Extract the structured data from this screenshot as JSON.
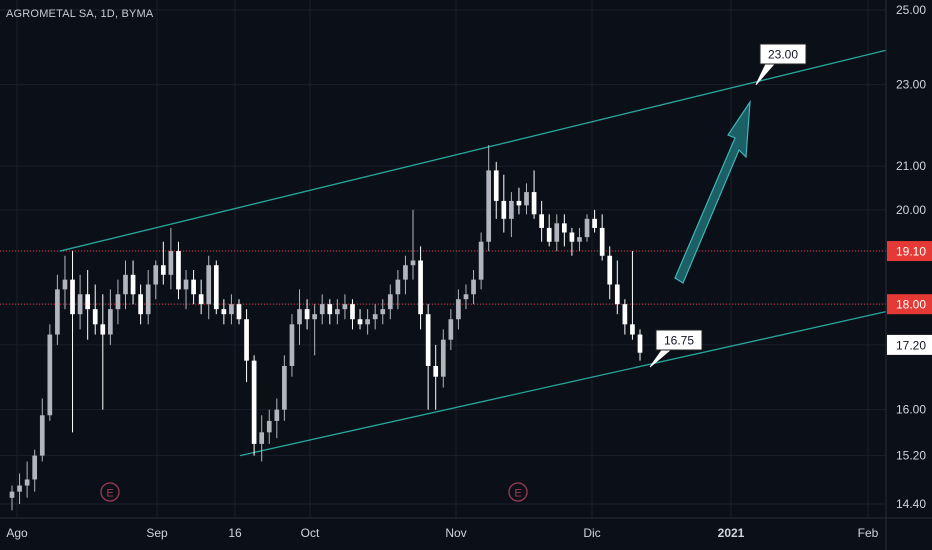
{
  "header": {
    "title": "AGROMETAL SA, 1D, BYMA"
  },
  "colors": {
    "background": "#0b0f17",
    "candle_up": "#b2b5be",
    "candle_down": "#ffffff",
    "channel": "#26a69a",
    "arrow": "#1d6e73",
    "level_line": "#e53935",
    "price_badge_red": "#e53935",
    "price_badge_white": "#ffffff",
    "earnings": "#9c3b55"
  },
  "chart_data": {
    "type": "candlestick",
    "title": "AGROMETAL SA, 1D, BYMA",
    "x_tick_labels": [
      "Ago",
      "Sep",
      "16",
      "Oct",
      "Nov",
      "Dic",
      "2021",
      "Feb"
    ],
    "y_tick_labels": [
      "25.00",
      "23.00",
      "21.00",
      "20.00",
      "19.10",
      "18.00",
      "17.20",
      "16.00",
      "15.20",
      "14.40"
    ],
    "y_scale": "log",
    "y_range": [
      14.2,
      25.5
    ],
    "candles": [
      {
        "o": 14.5,
        "h": 14.7,
        "l": 14.3,
        "c": 14.6
      },
      {
        "o": 14.6,
        "h": 14.9,
        "l": 14.4,
        "c": 14.7
      },
      {
        "o": 14.7,
        "h": 15.1,
        "l": 14.5,
        "c": 14.8
      },
      {
        "o": 14.8,
        "h": 15.3,
        "l": 14.6,
        "c": 15.2
      },
      {
        "o": 15.2,
        "h": 16.2,
        "l": 15.1,
        "c": 15.9
      },
      {
        "o": 15.9,
        "h": 17.6,
        "l": 15.8,
        "c": 17.4
      },
      {
        "o": 17.4,
        "h": 18.6,
        "l": 17.2,
        "c": 18.3
      },
      {
        "o": 18.3,
        "h": 19.0,
        "l": 17.9,
        "c": 18.5
      },
      {
        "o": 18.5,
        "h": 19.1,
        "l": 15.6,
        "c": 17.8
      },
      {
        "o": 17.8,
        "h": 18.6,
        "l": 17.5,
        "c": 18.2
      },
      {
        "o": 18.2,
        "h": 18.7,
        "l": 17.3,
        "c": 17.9
      },
      {
        "o": 17.9,
        "h": 18.4,
        "l": 17.4,
        "c": 17.6
      },
      {
        "o": 17.6,
        "h": 18.2,
        "l": 16.0,
        "c": 17.4
      },
      {
        "o": 17.4,
        "h": 18.3,
        "l": 17.2,
        "c": 17.9
      },
      {
        "o": 17.9,
        "h": 18.5,
        "l": 17.6,
        "c": 18.2
      },
      {
        "o": 18.2,
        "h": 18.9,
        "l": 17.9,
        "c": 18.6
      },
      {
        "o": 18.6,
        "h": 18.9,
        "l": 18.0,
        "c": 18.2
      },
      {
        "o": 18.2,
        "h": 18.4,
        "l": 17.6,
        "c": 17.8
      },
      {
        "o": 17.8,
        "h": 18.7,
        "l": 17.6,
        "c": 18.4
      },
      {
        "o": 18.4,
        "h": 18.9,
        "l": 18.1,
        "c": 18.8
      },
      {
        "o": 18.8,
        "h": 19.3,
        "l": 18.4,
        "c": 18.6
      },
      {
        "o": 18.6,
        "h": 19.6,
        "l": 18.3,
        "c": 19.1
      },
      {
        "o": 19.1,
        "h": 19.3,
        "l": 18.1,
        "c": 18.3
      },
      {
        "o": 18.3,
        "h": 18.7,
        "l": 17.9,
        "c": 18.5
      },
      {
        "o": 18.5,
        "h": 18.7,
        "l": 18.0,
        "c": 18.2
      },
      {
        "o": 18.2,
        "h": 18.5,
        "l": 17.8,
        "c": 18.0
      },
      {
        "o": 18.0,
        "h": 19.0,
        "l": 17.7,
        "c": 18.8
      },
      {
        "o": 18.8,
        "h": 18.9,
        "l": 17.8,
        "c": 17.9
      },
      {
        "o": 17.9,
        "h": 18.1,
        "l": 17.6,
        "c": 17.8
      },
      {
        "o": 17.8,
        "h": 18.2,
        "l": 17.6,
        "c": 18.0
      },
      {
        "o": 18.0,
        "h": 18.1,
        "l": 17.6,
        "c": 17.7
      },
      {
        "o": 17.7,
        "h": 17.9,
        "l": 16.5,
        "c": 16.9
      },
      {
        "o": 16.9,
        "h": 17.0,
        "l": 15.2,
        "c": 15.4
      },
      {
        "o": 15.4,
        "h": 15.9,
        "l": 15.1,
        "c": 15.6
      },
      {
        "o": 15.6,
        "h": 16.0,
        "l": 15.4,
        "c": 15.8
      },
      {
        "o": 15.8,
        "h": 16.2,
        "l": 15.5,
        "c": 16.0
      },
      {
        "o": 16.0,
        "h": 17.0,
        "l": 15.8,
        "c": 16.8
      },
      {
        "o": 16.8,
        "h": 17.8,
        "l": 16.6,
        "c": 17.6
      },
      {
        "o": 17.6,
        "h": 18.3,
        "l": 17.2,
        "c": 17.9
      },
      {
        "o": 17.9,
        "h": 18.1,
        "l": 17.5,
        "c": 17.7
      },
      {
        "o": 17.7,
        "h": 18.0,
        "l": 17.0,
        "c": 17.8
      },
      {
        "o": 17.8,
        "h": 18.2,
        "l": 17.6,
        "c": 18.0
      },
      {
        "o": 18.0,
        "h": 18.1,
        "l": 17.6,
        "c": 17.8
      },
      {
        "o": 17.8,
        "h": 18.1,
        "l": 17.6,
        "c": 17.9
      },
      {
        "o": 17.9,
        "h": 18.2,
        "l": 17.7,
        "c": 18.0
      },
      {
        "o": 18.0,
        "h": 18.1,
        "l": 17.5,
        "c": 17.7
      },
      {
        "o": 17.7,
        "h": 17.9,
        "l": 17.5,
        "c": 17.6
      },
      {
        "o": 17.6,
        "h": 17.9,
        "l": 17.4,
        "c": 17.7
      },
      {
        "o": 17.7,
        "h": 18.0,
        "l": 17.5,
        "c": 17.8
      },
      {
        "o": 17.8,
        "h": 18.1,
        "l": 17.6,
        "c": 17.9
      },
      {
        "o": 17.9,
        "h": 18.4,
        "l": 17.7,
        "c": 18.2
      },
      {
        "o": 18.2,
        "h": 18.7,
        "l": 17.9,
        "c": 18.5
      },
      {
        "o": 18.5,
        "h": 19.0,
        "l": 18.2,
        "c": 18.8
      },
      {
        "o": 18.8,
        "h": 20.0,
        "l": 18.5,
        "c": 18.9
      },
      {
        "o": 18.9,
        "h": 19.2,
        "l": 17.5,
        "c": 17.8
      },
      {
        "o": 17.8,
        "h": 18.0,
        "l": 16.0,
        "c": 16.8
      },
      {
        "o": 16.8,
        "h": 17.2,
        "l": 16.0,
        "c": 16.6
      },
      {
        "o": 16.6,
        "h": 17.5,
        "l": 16.4,
        "c": 17.3
      },
      {
        "o": 17.3,
        "h": 17.9,
        "l": 17.1,
        "c": 17.7
      },
      {
        "o": 17.7,
        "h": 18.3,
        "l": 17.5,
        "c": 18.1
      },
      {
        "o": 18.1,
        "h": 18.4,
        "l": 17.9,
        "c": 18.2
      },
      {
        "o": 18.2,
        "h": 18.7,
        "l": 18.0,
        "c": 18.5
      },
      {
        "o": 18.5,
        "h": 19.5,
        "l": 18.3,
        "c": 19.3
      },
      {
        "o": 19.3,
        "h": 21.5,
        "l": 19.1,
        "c": 20.9
      },
      {
        "o": 20.9,
        "h": 21.1,
        "l": 19.8,
        "c": 20.2
      },
      {
        "o": 20.2,
        "h": 20.8,
        "l": 19.5,
        "c": 19.8
      },
      {
        "o": 19.8,
        "h": 20.4,
        "l": 19.4,
        "c": 20.2
      },
      {
        "o": 20.2,
        "h": 20.5,
        "l": 19.9,
        "c": 20.1
      },
      {
        "o": 20.1,
        "h": 20.6,
        "l": 19.9,
        "c": 20.4
      },
      {
        "o": 20.4,
        "h": 20.9,
        "l": 19.8,
        "c": 19.9
      },
      {
        "o": 19.9,
        "h": 20.2,
        "l": 19.3,
        "c": 19.6
      },
      {
        "o": 19.6,
        "h": 19.9,
        "l": 19.2,
        "c": 19.3
      },
      {
        "o": 19.3,
        "h": 19.9,
        "l": 19.1,
        "c": 19.7
      },
      {
        "o": 19.7,
        "h": 19.9,
        "l": 19.2,
        "c": 19.5
      },
      {
        "o": 19.5,
        "h": 19.6,
        "l": 19.0,
        "c": 19.3
      },
      {
        "o": 19.3,
        "h": 19.6,
        "l": 19.1,
        "c": 19.4
      },
      {
        "o": 19.4,
        "h": 19.9,
        "l": 19.3,
        "c": 19.8
      },
      {
        "o": 19.8,
        "h": 20.0,
        "l": 19.5,
        "c": 19.6
      },
      {
        "o": 19.6,
        "h": 19.9,
        "l": 18.9,
        "c": 19.0
      },
      {
        "o": 19.0,
        "h": 19.2,
        "l": 18.1,
        "c": 18.4
      },
      {
        "o": 18.4,
        "h": 18.9,
        "l": 17.8,
        "c": 18.0
      },
      {
        "o": 18.0,
        "h": 18.1,
        "l": 17.4,
        "c": 17.6
      },
      {
        "o": 17.6,
        "h": 19.1,
        "l": 17.3,
        "c": 17.4
      },
      {
        "o": 17.4,
        "h": 17.5,
        "l": 16.9,
        "c": 17.05
      }
    ],
    "horizontal_levels": [
      19.1,
      18.0
    ],
    "channel": {
      "upper": {
        "from": 19.1,
        "to": 23.9
      },
      "lower": {
        "from": 15.2,
        "to": 17.85
      }
    },
    "annotations": [
      {
        "label": "23.00",
        "value": 23.0
      },
      {
        "label": "16.75",
        "value": 16.75
      }
    ],
    "price_labels": [
      {
        "label": "19.10",
        "value": 19.1,
        "style": "red"
      },
      {
        "label": "18.00",
        "value": 18.0,
        "style": "red"
      },
      {
        "label": "17.20",
        "value": 17.2,
        "style": "white"
      }
    ],
    "earnings_markers": [
      "E",
      "E"
    ],
    "grid": true
  }
}
